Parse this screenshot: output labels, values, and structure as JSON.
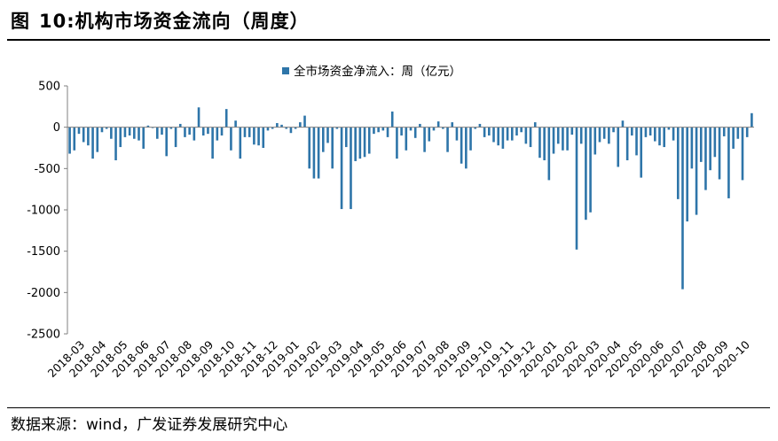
{
  "figure": {
    "label": "图",
    "number": "10:",
    "title": "机构市场资金流向（周度）"
  },
  "source_text": "数据来源：wind，广发证券发展研究中心",
  "colors": {
    "bar": "#2E75A9",
    "axis": "#808080",
    "text": "#000000"
  },
  "chart_data": {
    "type": "bar",
    "legend": "全市场资金净流入：周（亿元）",
    "legend_position": "top-center",
    "ylim": [
      -2500,
      500
    ],
    "yticks": [
      500,
      0,
      -500,
      -1000,
      -1500,
      -2000,
      -2500
    ],
    "xlabels": [
      "2018-03",
      "2018-04",
      "2018-05",
      "2018-06",
      "2018-07",
      "2018-08",
      "2018-09",
      "2018-10",
      "2018-11",
      "2018-12",
      "2019-01",
      "2019-02",
      "2019-03",
      "2019-04",
      "2019-05",
      "2019-06",
      "2019-07",
      "2019-08",
      "2019-09",
      "2019-10",
      "2019-11",
      "2019-12",
      "2020-01",
      "2020-02",
      "2020-03",
      "2020-04",
      "2020-05",
      "2020-06",
      "2020-07",
      "2020-08",
      "2020-09",
      "2020-10"
    ],
    "series": [
      {
        "name": "全市场资金净流入：周（亿元）",
        "values": [
          -320,
          -280,
          -80,
          -180,
          -220,
          -380,
          -300,
          -60,
          -20,
          -140,
          -400,
          -240,
          -120,
          -100,
          -140,
          -160,
          -260,
          20,
          -10,
          -140,
          -90,
          -350,
          -20,
          -240,
          40,
          -120,
          -90,
          -160,
          240,
          -100,
          -80,
          -380,
          -160,
          -100,
          220,
          -280,
          80,
          -380,
          -120,
          -120,
          -210,
          -220,
          -250,
          -40,
          -20,
          50,
          30,
          -20,
          -70,
          -20,
          60,
          140,
          -500,
          -620,
          -620,
          -300,
          -190,
          -500,
          -20,
          -990,
          -240,
          -990,
          -410,
          -380,
          -360,
          -320,
          -80,
          -60,
          -40,
          -120,
          190,
          -380,
          -100,
          -280,
          -40,
          -130,
          40,
          -300,
          -170,
          -40,
          70,
          -20,
          -300,
          60,
          -160,
          -440,
          -500,
          -280,
          -20,
          40,
          -120,
          -100,
          -180,
          -220,
          -260,
          -160,
          -160,
          -100,
          -60,
          -200,
          -240,
          60,
          -370,
          -400,
          -640,
          -320,
          -200,
          -280,
          -280,
          -90,
          -1480,
          -200,
          -1120,
          -1030,
          -330,
          -180,
          -140,
          -200,
          -60,
          -480,
          80,
          -400,
          -100,
          -340,
          -610,
          -120,
          -100,
          -170,
          -220,
          -240,
          -30,
          -160,
          -870,
          -1960,
          -1140,
          -500,
          -1060,
          -420,
          -760,
          -520,
          -360,
          -630,
          -110,
          -860,
          -260,
          -140,
          -640,
          -120,
          170
        ]
      }
    ]
  }
}
